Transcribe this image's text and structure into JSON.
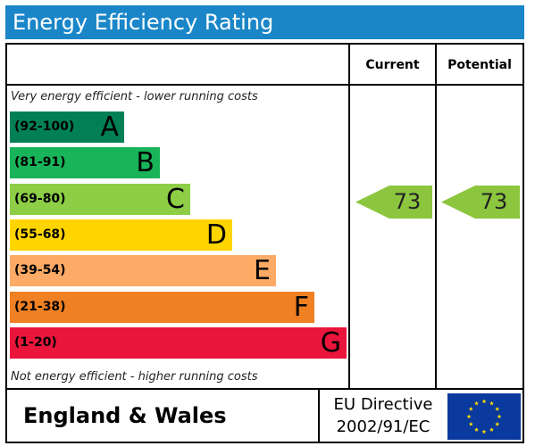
{
  "title": "Energy Efficiency Rating",
  "header": {
    "current_label": "Current",
    "potential_label": "Potential"
  },
  "notes": {
    "top": "Very energy efficient - lower running costs",
    "bottom": "Not energy efficient - higher running costs"
  },
  "chart_data": {
    "type": "bar",
    "title": "Energy Efficiency Rating",
    "categories": [
      "A",
      "B",
      "C",
      "D",
      "E",
      "F",
      "G"
    ],
    "ranges": [
      "(92-100)",
      "(81-91)",
      "(69-80)",
      "(55-68)",
      "(39-54)",
      "(21-38)",
      "(1-20)"
    ],
    "colors": [
      "#008054",
      "#19b459",
      "#8dce46",
      "#ffd500",
      "#fcaa65",
      "#ef8023",
      "#e9153b"
    ],
    "current": {
      "value": 73,
      "band": "C"
    },
    "potential": {
      "value": 73,
      "band": "C"
    }
  },
  "footer": {
    "region": "England & Wales",
    "directive_line1": "EU Directive",
    "directive_line2": "2002/91/EC"
  },
  "eu_flag": {
    "icon": "eu-flag-icon",
    "color": "#0b3a9e",
    "star_color": "#ffdd00"
  }
}
